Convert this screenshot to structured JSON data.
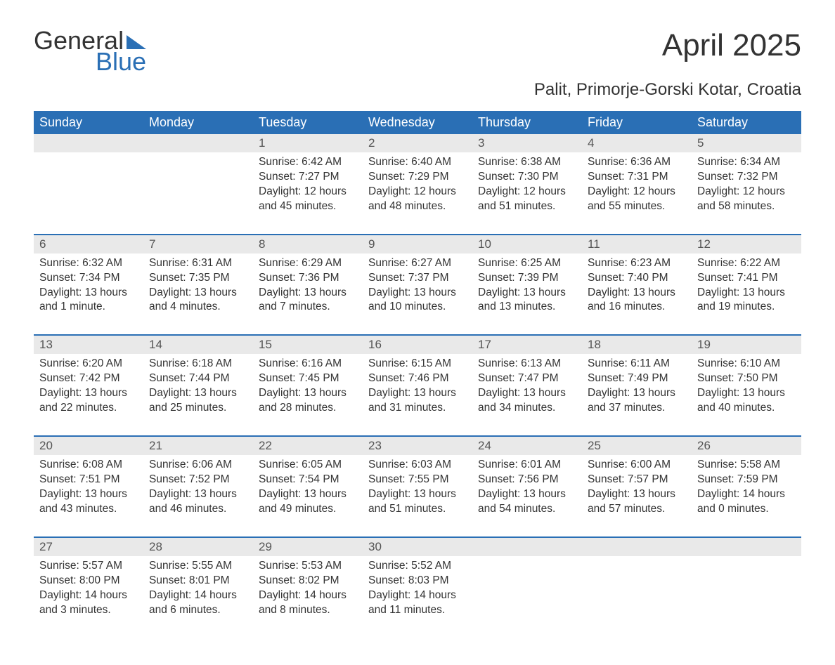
{
  "brand": {
    "top": "General",
    "bottom": "Blue"
  },
  "title": "April 2025",
  "subtitle": "Palit, Primorje-Gorski Kotar, Croatia",
  "colors": {
    "header_bg": "#2a6fb5",
    "header_text": "#ffffff",
    "daynum_bg": "#e9e9e9",
    "body_bg": "#ffffff",
    "text": "#333333",
    "week_border": "#2a6fb5"
  },
  "typography": {
    "title_fontsize": 44,
    "subtitle_fontsize": 24,
    "weekday_fontsize": 18,
    "daynum_fontsize": 17,
    "body_fontsize": 15.5
  },
  "weekdays": [
    "Sunday",
    "Monday",
    "Tuesday",
    "Wednesday",
    "Thursday",
    "Friday",
    "Saturday"
  ],
  "labels": {
    "sunrise": "Sunrise:",
    "sunset": "Sunset:",
    "daylight": "Daylight:"
  },
  "weeks": [
    [
      {
        "n": "",
        "sunrise": "",
        "sunset": "",
        "daylight": ""
      },
      {
        "n": "",
        "sunrise": "",
        "sunset": "",
        "daylight": ""
      },
      {
        "n": "1",
        "sunrise": "6:42 AM",
        "sunset": "7:27 PM",
        "daylight": "12 hours and 45 minutes."
      },
      {
        "n": "2",
        "sunrise": "6:40 AM",
        "sunset": "7:29 PM",
        "daylight": "12 hours and 48 minutes."
      },
      {
        "n": "3",
        "sunrise": "6:38 AM",
        "sunset": "7:30 PM",
        "daylight": "12 hours and 51 minutes."
      },
      {
        "n": "4",
        "sunrise": "6:36 AM",
        "sunset": "7:31 PM",
        "daylight": "12 hours and 55 minutes."
      },
      {
        "n": "5",
        "sunrise": "6:34 AM",
        "sunset": "7:32 PM",
        "daylight": "12 hours and 58 minutes."
      }
    ],
    [
      {
        "n": "6",
        "sunrise": "6:32 AM",
        "sunset": "7:34 PM",
        "daylight": "13 hours and 1 minute."
      },
      {
        "n": "7",
        "sunrise": "6:31 AM",
        "sunset": "7:35 PM",
        "daylight": "13 hours and 4 minutes."
      },
      {
        "n": "8",
        "sunrise": "6:29 AM",
        "sunset": "7:36 PM",
        "daylight": "13 hours and 7 minutes."
      },
      {
        "n": "9",
        "sunrise": "6:27 AM",
        "sunset": "7:37 PM",
        "daylight": "13 hours and 10 minutes."
      },
      {
        "n": "10",
        "sunrise": "6:25 AM",
        "sunset": "7:39 PM",
        "daylight": "13 hours and 13 minutes."
      },
      {
        "n": "11",
        "sunrise": "6:23 AM",
        "sunset": "7:40 PM",
        "daylight": "13 hours and 16 minutes."
      },
      {
        "n": "12",
        "sunrise": "6:22 AM",
        "sunset": "7:41 PM",
        "daylight": "13 hours and 19 minutes."
      }
    ],
    [
      {
        "n": "13",
        "sunrise": "6:20 AM",
        "sunset": "7:42 PM",
        "daylight": "13 hours and 22 minutes."
      },
      {
        "n": "14",
        "sunrise": "6:18 AM",
        "sunset": "7:44 PM",
        "daylight": "13 hours and 25 minutes."
      },
      {
        "n": "15",
        "sunrise": "6:16 AM",
        "sunset": "7:45 PM",
        "daylight": "13 hours and 28 minutes."
      },
      {
        "n": "16",
        "sunrise": "6:15 AM",
        "sunset": "7:46 PM",
        "daylight": "13 hours and 31 minutes."
      },
      {
        "n": "17",
        "sunrise": "6:13 AM",
        "sunset": "7:47 PM",
        "daylight": "13 hours and 34 minutes."
      },
      {
        "n": "18",
        "sunrise": "6:11 AM",
        "sunset": "7:49 PM",
        "daylight": "13 hours and 37 minutes."
      },
      {
        "n": "19",
        "sunrise": "6:10 AM",
        "sunset": "7:50 PM",
        "daylight": "13 hours and 40 minutes."
      }
    ],
    [
      {
        "n": "20",
        "sunrise": "6:08 AM",
        "sunset": "7:51 PM",
        "daylight": "13 hours and 43 minutes."
      },
      {
        "n": "21",
        "sunrise": "6:06 AM",
        "sunset": "7:52 PM",
        "daylight": "13 hours and 46 minutes."
      },
      {
        "n": "22",
        "sunrise": "6:05 AM",
        "sunset": "7:54 PM",
        "daylight": "13 hours and 49 minutes."
      },
      {
        "n": "23",
        "sunrise": "6:03 AM",
        "sunset": "7:55 PM",
        "daylight": "13 hours and 51 minutes."
      },
      {
        "n": "24",
        "sunrise": "6:01 AM",
        "sunset": "7:56 PM",
        "daylight": "13 hours and 54 minutes."
      },
      {
        "n": "25",
        "sunrise": "6:00 AM",
        "sunset": "7:57 PM",
        "daylight": "13 hours and 57 minutes."
      },
      {
        "n": "26",
        "sunrise": "5:58 AM",
        "sunset": "7:59 PM",
        "daylight": "14 hours and 0 minutes."
      }
    ],
    [
      {
        "n": "27",
        "sunrise": "5:57 AM",
        "sunset": "8:00 PM",
        "daylight": "14 hours and 3 minutes."
      },
      {
        "n": "28",
        "sunrise": "5:55 AM",
        "sunset": "8:01 PM",
        "daylight": "14 hours and 6 minutes."
      },
      {
        "n": "29",
        "sunrise": "5:53 AM",
        "sunset": "8:02 PM",
        "daylight": "14 hours and 8 minutes."
      },
      {
        "n": "30",
        "sunrise": "5:52 AM",
        "sunset": "8:03 PM",
        "daylight": "14 hours and 11 minutes."
      },
      {
        "n": "",
        "sunrise": "",
        "sunset": "",
        "daylight": ""
      },
      {
        "n": "",
        "sunrise": "",
        "sunset": "",
        "daylight": ""
      },
      {
        "n": "",
        "sunrise": "",
        "sunset": "",
        "daylight": ""
      }
    ]
  ]
}
